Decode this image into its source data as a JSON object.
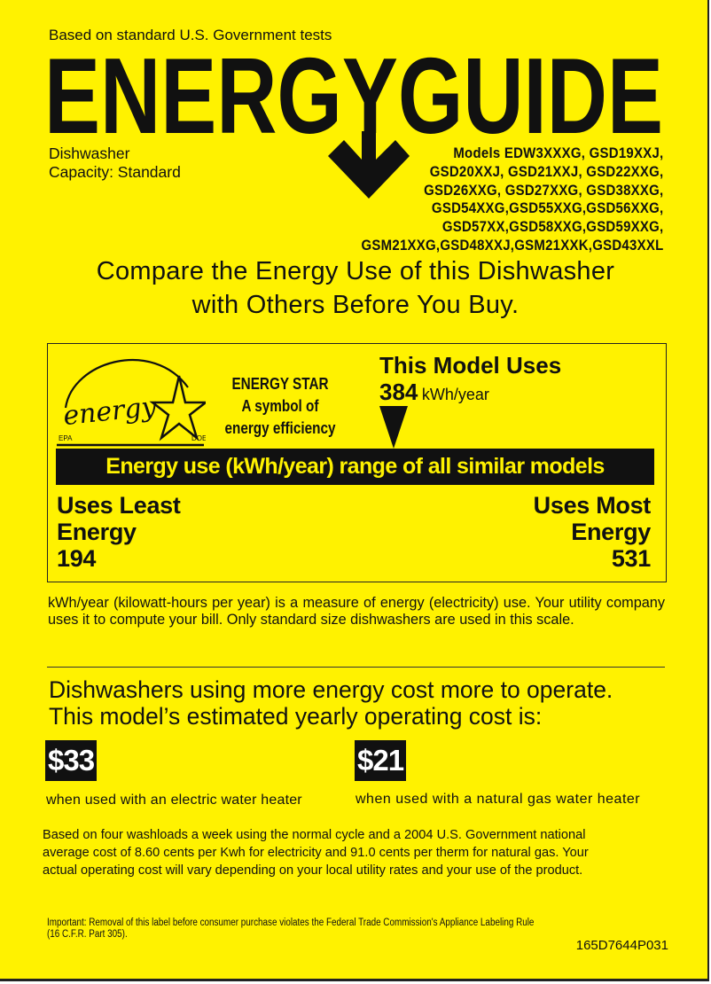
{
  "header": {
    "tests_note": "Based on standard U.S. Government tests",
    "title": "ENERGYGUIDE",
    "appliance": "Dishwasher",
    "capacity": "Capacity: Standard",
    "models": [
      "Models EDW3XXXG, GSD19XXJ,",
      "GSD20XXJ,  GSD21XXJ, GSD22XXG,",
      "GSD26XXG, GSD27XXG, GSD38XXG,",
      "GSD54XXG,GSD55XXG,GSD56XXG,",
      "GSD57XX,GSD58XXG,GSD59XXG,",
      "GSM21XXG,GSD48XXJ,GSM21XXK,GSD43XXL"
    ]
  },
  "compare": [
    "Compare the Energy Use of this Dishwasher",
    "with Others Before You Buy."
  ],
  "energy_star": {
    "logo_text": "energy",
    "logo_epa": "EPA",
    "logo_doe": "DOE",
    "lines": [
      "ENERGY STAR",
      "A symbol of",
      "energy efficiency"
    ]
  },
  "usage": {
    "title": "This Model Uses",
    "value": "384",
    "unit": "kWh/year",
    "range_label": "Energy use (kWh/year) range of all similar models",
    "least_label": [
      "Uses Least",
      "Energy"
    ],
    "least_value": "194",
    "most_label": [
      "Uses Most",
      "Energy"
    ],
    "most_value": "531"
  },
  "explanation": "kWh/year (kilowatt-hours per year) is a measure of energy (electricity) use. Your utility company uses it to compute your bill. Only standard size dishwashers are used in this scale.",
  "cost": {
    "heading": [
      "Dishwashers using more energy cost more to operate.",
      "This model’s estimated yearly operating cost is:"
    ],
    "electric_value": "$33",
    "electric_caption": "when used with an electric water heater",
    "gas_value": "$21",
    "gas_caption": "when used with a natural gas water heater",
    "basis": [
      "Based on four washloads a week using the normal cycle and a 2004 U.S. Government national",
      "average cost of 8.60 cents per Kwh for electricity and 91.0 cents per therm for natural gas. Your",
      "actual operating cost will vary depending on your local utility rates and your use of the product."
    ]
  },
  "footer": {
    "important": [
      "Important: Removal of this label before consumer purchase violates the Federal Trade Commission's Appliance Labeling Rule",
      "(16 C.F.R. Part 305)."
    ],
    "code": "165D7644P031"
  },
  "colors": {
    "background": "#fff200",
    "ink": "#111111"
  }
}
